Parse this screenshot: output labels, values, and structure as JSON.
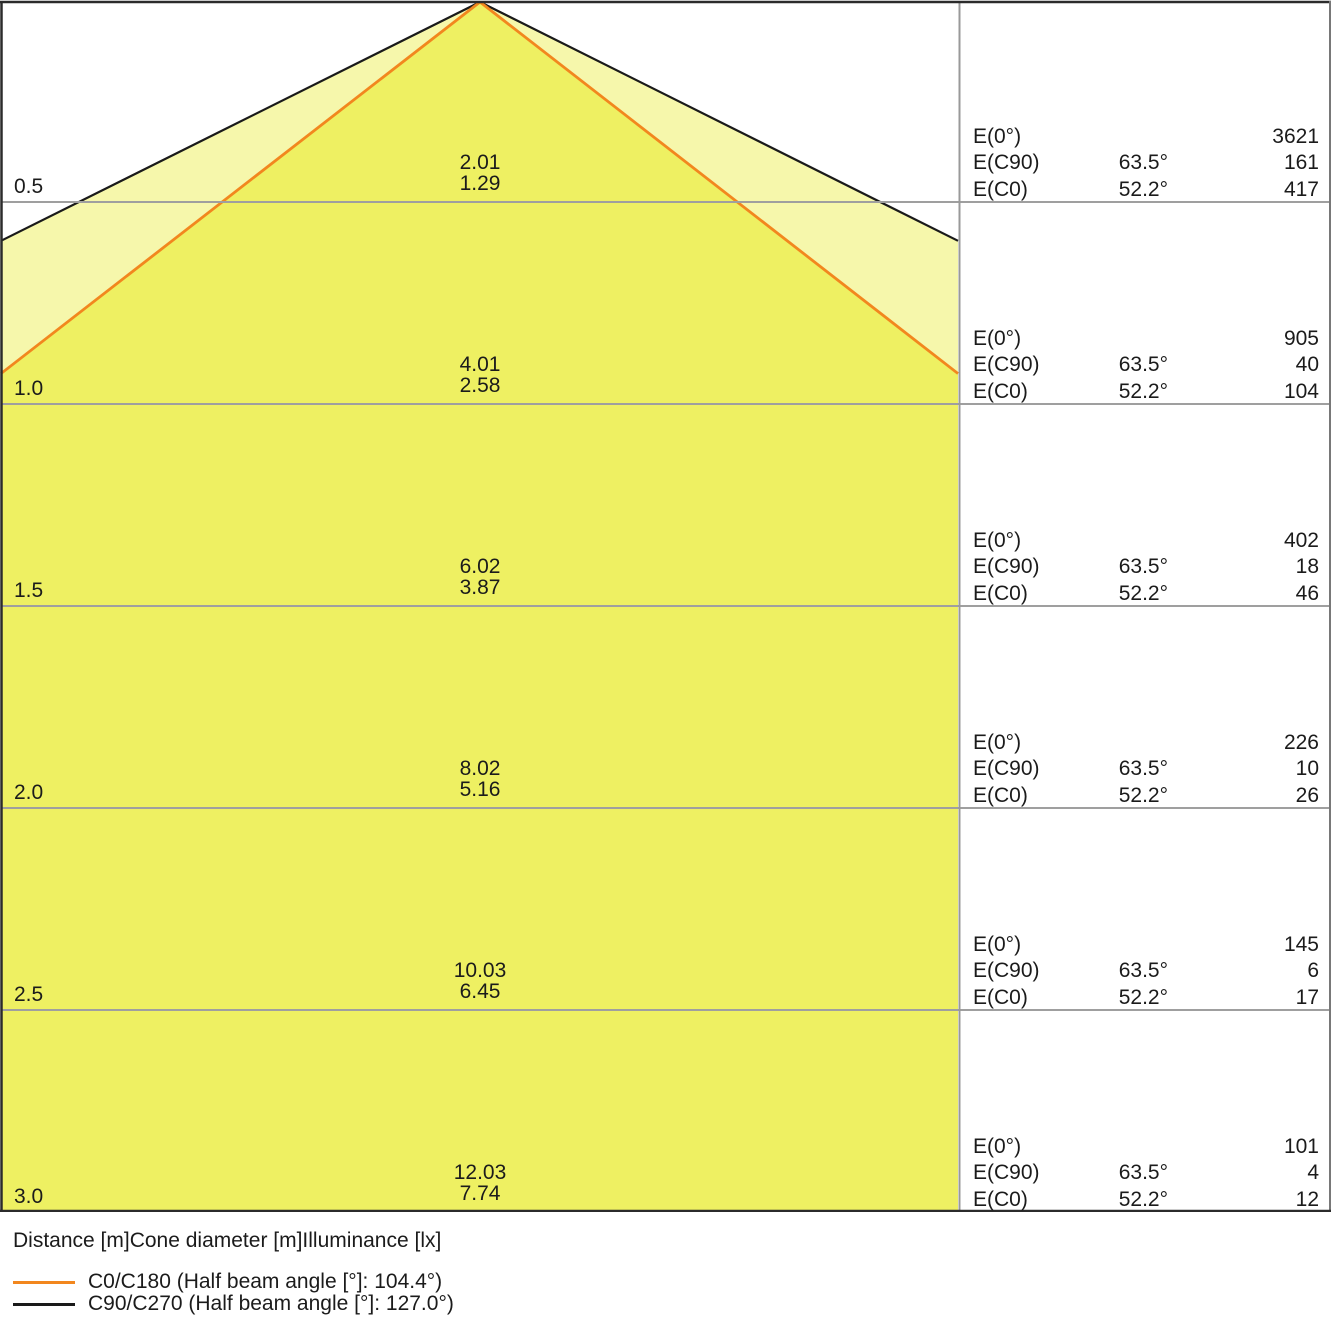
{
  "chart_data": {
    "type": "table",
    "columns": [
      "Distance [m]",
      "Cone diameter [m]",
      "Illuminance [lx]"
    ],
    "panel_labels": {
      "e0": "E(0°)",
      "ec90": "E(C90)",
      "ec0": "E(C0)"
    },
    "rows": [
      {
        "distance": "0.5",
        "diameter_c90": "2.01",
        "diameter_c0": "1.29",
        "e0_lx": "3621",
        "c90_angle": "63.5°",
        "ec90_lx": "161",
        "c0_angle": "52.2°",
        "ec0_lx": "417"
      },
      {
        "distance": "1.0",
        "diameter_c90": "4.01",
        "diameter_c0": "2.58",
        "e0_lx": "905",
        "c90_angle": "63.5°",
        "ec90_lx": "40",
        "c0_angle": "52.2°",
        "ec0_lx": "104"
      },
      {
        "distance": "1.5",
        "diameter_c90": "6.02",
        "diameter_c0": "3.87",
        "e0_lx": "402",
        "c90_angle": "63.5°",
        "ec90_lx": "18",
        "c0_angle": "52.2°",
        "ec0_lx": "46"
      },
      {
        "distance": "2.0",
        "diameter_c90": "8.02",
        "diameter_c0": "5.16",
        "e0_lx": "226",
        "c90_angle": "63.5°",
        "ec90_lx": "10",
        "c0_angle": "52.2°",
        "ec0_lx": "26"
      },
      {
        "distance": "2.5",
        "diameter_c90": "10.03",
        "diameter_c0": "6.45",
        "e0_lx": "145",
        "c90_angle": "63.5°",
        "ec90_lx": "6",
        "c0_angle": "52.2°",
        "ec0_lx": "17"
      },
      {
        "distance": "3.0",
        "diameter_c90": "12.03",
        "diameter_c0": "7.74",
        "e0_lx": "101",
        "c90_angle": "63.5°",
        "ec90_lx": "4",
        "c0_angle": "52.2°",
        "ec0_lx": "12"
      }
    ],
    "beams": {
      "c0_c180": {
        "name": "C0/C180",
        "half_beam_angle_deg": 52.2,
        "full_beam_angle_label": "104.4°"
      },
      "c90_c270": {
        "name": "C90/C270",
        "half_beam_angle_deg": 63.5,
        "full_beam_angle_label": "127.0°"
      }
    },
    "footer": {
      "axis_caption": "Distance [m]Cone diameter [m]Illuminance [lx]",
      "legend": [
        {
          "swatch": "orange-line",
          "label": "C0/C180 (Half beam angle [°]: 104.4°)"
        },
        {
          "swatch": "black-line",
          "label": "C90/C270 (Half beam angle [°]: 127.0°)"
        }
      ]
    },
    "colors": {
      "cone_wide_fill": "#F6F7AB",
      "cone_narrow_fill": "#EEF062",
      "orange": "#F2871E",
      "black_line": "#1A1A1A",
      "grid": "#9F9F9F",
      "divider": "#999999",
      "border_dark": "#2B2B2B",
      "border_right": "#787878",
      "text": "#1B1B1B"
    }
  }
}
